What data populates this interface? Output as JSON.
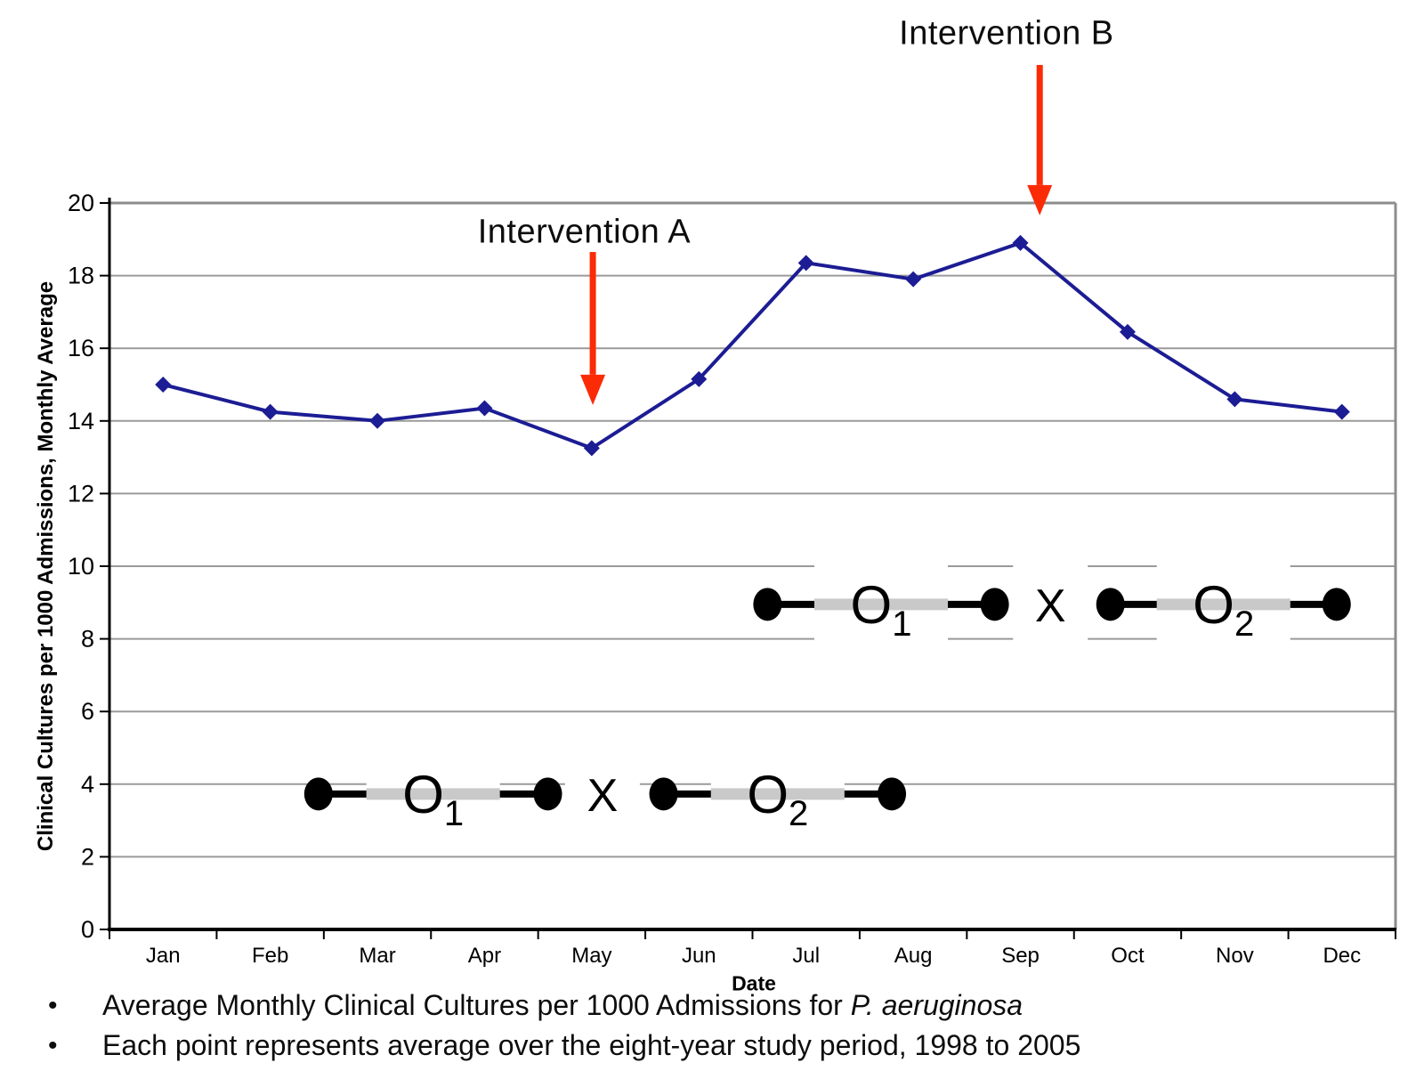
{
  "page": {
    "background": "#ffffff",
    "bullets": [
      {
        "text": "Average Monthly Clinical Cultures per 1000 Admissions for ",
        "italic_suffix": "P. aeruginosa"
      },
      {
        "text": "Each point represents average over the eight-year study period, 1998 to 2005",
        "italic_suffix": ""
      }
    ]
  },
  "chart_data": {
    "type": "line",
    "title": "",
    "categories": [
      "Jan",
      "Feb",
      "Mar",
      "Apr",
      "May",
      "Jun",
      "Jul",
      "Aug",
      "Sep",
      "Oct",
      "Nov",
      "Dec"
    ],
    "series": [
      {
        "name": "Clinical cultures per 1000 admissions, monthly average",
        "color": "#1c1c94",
        "marker": "diamond",
        "values": [
          15.0,
          14.25,
          14.0,
          14.35,
          13.25,
          15.15,
          18.35,
          17.9,
          18.9,
          16.45,
          14.6,
          14.25
        ]
      }
    ],
    "xlabel": "Date",
    "ylabel": "Clinical Cultures per 1000 Admissions, Monthly Average",
    "ylim": [
      0,
      20
    ],
    "ytick_step": 2,
    "ytick_labels": [
      "0",
      "2",
      "4",
      "6",
      "8",
      "10",
      "12",
      "14",
      "16",
      "18",
      "20"
    ],
    "grid": "horizontal",
    "gridline_color": "#9a9a9a",
    "border_color": "#8c8c8c",
    "axis_color": "#000000",
    "legend": "none",
    "annotations": [
      {
        "label": "Intervention A",
        "color": "#fb2b06",
        "label_x_month": 3.93,
        "label_y_value": 19.2,
        "arrow_x_month": 4.01,
        "arrow_top_value": 18.65,
        "arrow_tip_value": 14.44
      },
      {
        "label": "Intervention B",
        "color": "#fb2b06",
        "label_x_month": 7.87,
        "label_y_value": 24.66,
        "arrow_x_month": 8.18,
        "arrow_top_value": 23.8,
        "arrow_tip_value": 19.66
      }
    ],
    "design_notation": {
      "ink_color": "#000000",
      "band_color": "#c9c9c9",
      "rows": [
        {
          "y_value": 3.73,
          "segments": [
            {
              "start_month": 1.45,
              "end_month": 3.59,
              "label": "O",
              "subscript": "1"
            },
            {
              "start_month": 4.67,
              "end_month": 6.8,
              "label": "O",
              "subscript": "2"
            }
          ],
          "treatment_marker": {
            "label": "X",
            "x_month": 4.1
          }
        },
        {
          "y_value": 8.95,
          "segments": [
            {
              "start_month": 5.64,
              "end_month": 7.76,
              "label": "O",
              "subscript": "1"
            },
            {
              "start_month": 8.84,
              "end_month": 10.95,
              "label": "O",
              "subscript": "2"
            }
          ],
          "treatment_marker": {
            "label": "X",
            "x_month": 8.28
          }
        }
      ]
    }
  }
}
